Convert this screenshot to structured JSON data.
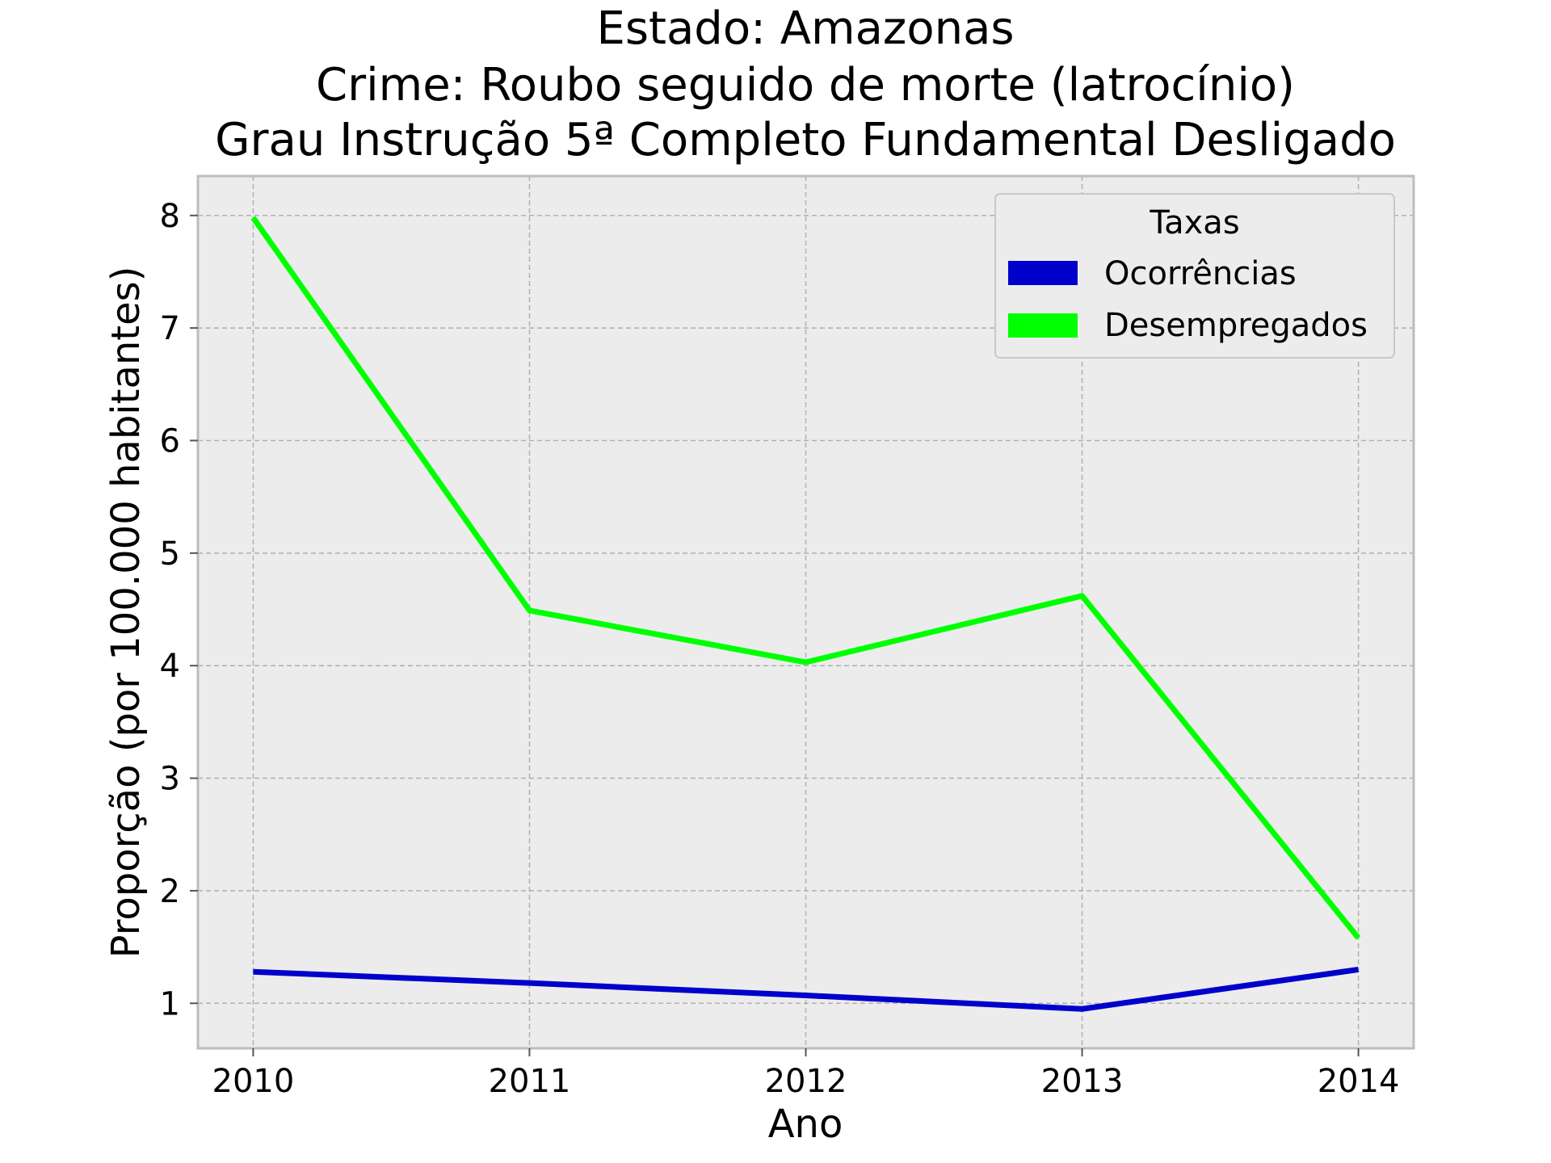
{
  "chart_data": {
    "type": "line",
    "title_lines": [
      "Estado: Amazonas",
      "Crime: Roubo seguido de morte (latrocínio)",
      "Grau Instrução  5ª Completo Fundamental   Desligado"
    ],
    "xlabel": "Ano",
    "ylabel": "Proporção (por 100.000 habitantes)",
    "x": [
      2010,
      2011,
      2012,
      2013,
      2014
    ],
    "x_tick_labels": [
      "2010",
      "2011",
      "2012",
      "2013",
      "2014"
    ],
    "y_ticks": [
      1,
      2,
      3,
      4,
      5,
      6,
      7,
      8
    ],
    "y_tick_labels": [
      "1",
      "2",
      "3",
      "4",
      "5",
      "6",
      "7",
      "8"
    ],
    "xlim": [
      2009.8,
      2014.2
    ],
    "ylim": [
      0.6,
      8.35
    ],
    "grid": true,
    "legend": {
      "title": "Taxas",
      "placement": "top-right"
    },
    "series": [
      {
        "name": "Ocorrências",
        "color": "#0000cc",
        "values": [
          1.28,
          1.18,
          1.07,
          0.95,
          1.3
        ]
      },
      {
        "name": "Desempregados",
        "color": "#00ff00",
        "values": [
          7.98,
          4.49,
          4.03,
          4.62,
          1.58
        ]
      }
    ],
    "style": {
      "plot_background": "#ececec",
      "frame_color": "#bdbdbd",
      "grid_color": "#b0b0b0"
    }
  }
}
